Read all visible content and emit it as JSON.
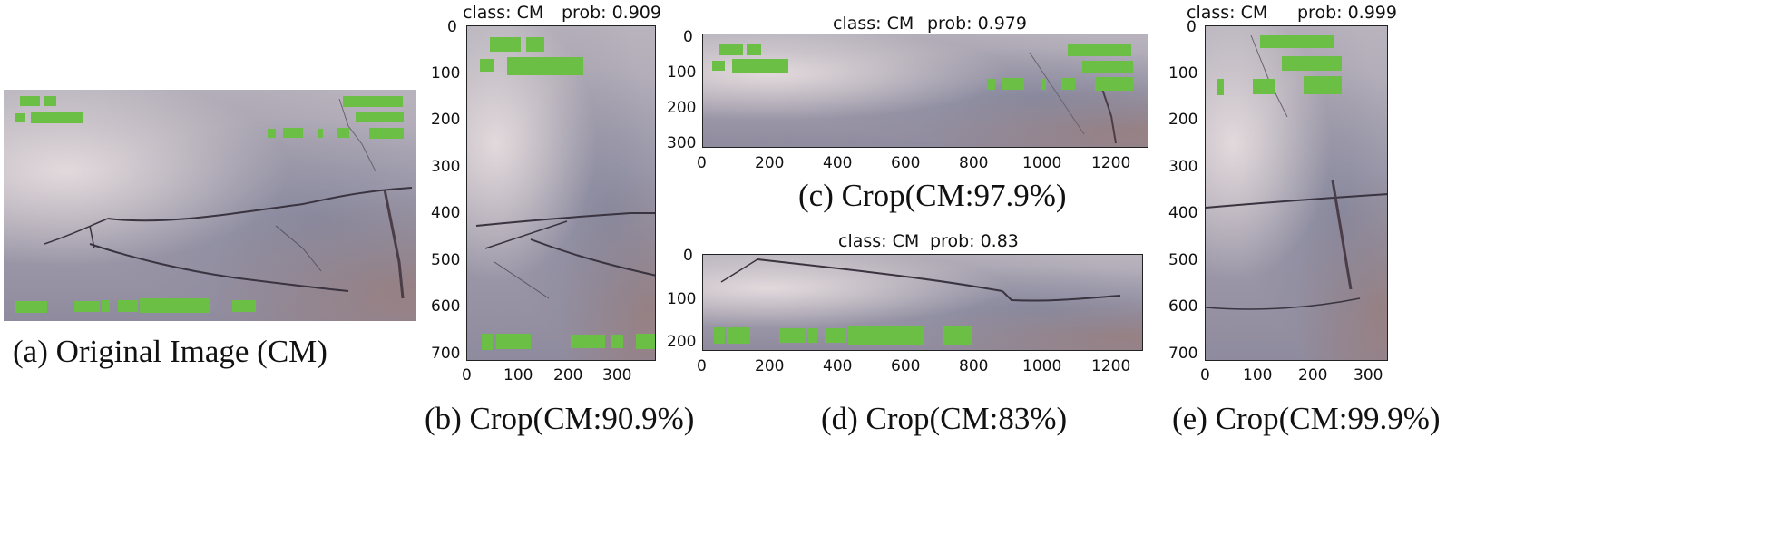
{
  "captions": {
    "a": "(a) Original Image (CM)",
    "b": "(b) Crop(CM:90.9%)",
    "c": "(c) Crop(CM:97.9%)",
    "d": "(d) Crop(CM:83%)",
    "e": "(e) Crop(CM:99.9%)"
  },
  "panels": {
    "b": {
      "class_text": "class: CM",
      "prob_text": "prob: 0.909",
      "x_ticks": [
        "0",
        "100",
        "200",
        "300"
      ],
      "y_ticks": [
        "0",
        "100",
        "200",
        "300",
        "400",
        "500",
        "600",
        "700"
      ]
    },
    "c": {
      "class_text": "class: CM",
      "prob_text": "prob: 0.979",
      "x_ticks": [
        "0",
        "200",
        "400",
        "600",
        "800",
        "1000",
        "1200"
      ],
      "y_ticks": [
        "0",
        "100",
        "200",
        "300"
      ]
    },
    "d": {
      "class_text": "class: CM",
      "prob_text": "prob: 0.83",
      "x_ticks": [
        "0",
        "200",
        "400",
        "600",
        "800",
        "1000",
        "1200"
      ],
      "y_ticks": [
        "0",
        "100",
        "200"
      ]
    },
    "e": {
      "class_text": "class: CM",
      "prob_text": "prob: 0.999",
      "x_ticks": [
        "0",
        "100",
        "200",
        "300"
      ],
      "y_ticks": [
        "0",
        "100",
        "200",
        "300",
        "400",
        "500",
        "600",
        "700"
      ]
    }
  },
  "colors": {
    "detection_box": "#6bbf45",
    "crack": "#3a3340"
  }
}
